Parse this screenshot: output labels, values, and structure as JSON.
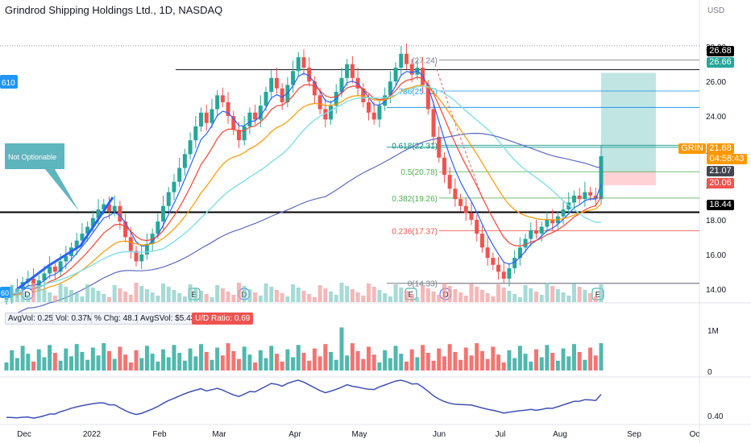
{
  "header": {
    "title": "Grindrod Shipping Holdings Ltd., 1D, NASDAQ",
    "currency": "USD"
  },
  "colors": {
    "up": "#26a69a",
    "down": "#ef5350",
    "ema_fast": "#f44336",
    "ema_slow": "#ff9800",
    "ma_cyan": "#80deea",
    "ma_purple": "#5c6bc0",
    "price_blue": "#2962ff",
    "teal_box": "#b2dfdb",
    "red_box": "#ffcdd2",
    "callout": "#5fb5bd"
  },
  "callout": {
    "text": "Not Optionable"
  },
  "left_badge": {
    "text": "610"
  },
  "left_bottom_badge": {
    "text": "60"
  },
  "price_labels": {
    "upper_level": "26.68",
    "upper_level2": "26.66",
    "ticker": "GRIN",
    "last_price": "21.68",
    "countdown": "04:58:43",
    "level_2107": "21.07",
    "level_2006": "20.06",
    "level_1844": "18.44"
  },
  "stats": {
    "avgvol": "AvgVol: 0.25M",
    "vol": "Vol: 0.37M",
    "chg": "% Chg: 48.13%",
    "avgdollar": "AvgSVol: $5.43M",
    "ud_ratio": "U/D Ratio: 0.69"
  },
  "chart_data": [
    {
      "type": "candlestick",
      "title": "Grindrod Shipping Holdings Ltd., 1D, NASDAQ",
      "y_axis_ticks": [
        "28.00",
        "26.00",
        "24.00",
        "22.00",
        "20.00",
        "18.00",
        "16.00",
        "14.00"
      ],
      "ylim": [
        13.2,
        29.5
      ],
      "x_axis_ticks": [
        "Dec",
        "2022",
        "Feb",
        "Mar",
        "Apr",
        "May",
        "Jun",
        "Jul",
        "Aug",
        "Sep",
        "Oc"
      ],
      "fib_levels": [
        {
          "label": "(27.24)",
          "value": 27.24
        },
        {
          "label": ".786(25.45)",
          "value": 25.45
        },
        {
          "label": "0.618(22.31)",
          "value": 22.31
        },
        {
          "label": "0.5(20.78)",
          "value": 20.78
        },
        {
          "label": "0.382(19.26)",
          "value": 19.26
        },
        {
          "label": "0.236(17.37)",
          "value": 17.37
        },
        {
          "label": "0(14.33)",
          "value": 14.33
        }
      ],
      "horizontal_levels": [
        28.06,
        26.68,
        24.5,
        22.2,
        18.44,
        14.33
      ],
      "earnings_markers": [
        "E",
        "E",
        "E",
        "E"
      ],
      "dividend_markers": [
        "D",
        "D",
        "D",
        "D"
      ],
      "series": [
        {
          "name": "Price",
          "note": "daily candles approx.",
          "close": [
            13.6,
            13.8,
            14.0,
            14.4,
            14.6,
            14.2,
            14.5,
            14.9,
            15.3,
            15.0,
            15.6,
            15.9,
            16.4,
            16.8,
            17.2,
            17.6,
            18.1,
            18.6,
            18.9,
            18.5,
            18.8,
            17.9,
            17.0,
            16.2,
            15.6,
            16.0,
            16.6,
            17.2,
            17.9,
            18.8,
            19.6,
            20.2,
            21.0,
            21.8,
            22.6,
            23.4,
            24.2,
            23.6,
            24.4,
            25.2,
            24.8,
            24.0,
            23.2,
            22.6,
            23.4,
            24.2,
            23.8,
            24.6,
            25.4,
            26.2,
            25.6,
            24.8,
            25.8,
            26.6,
            27.4,
            26.8,
            26.0,
            25.2,
            24.4,
            23.8,
            24.6,
            25.4,
            26.2,
            27.0,
            26.2,
            25.6,
            24.8,
            24.2,
            23.8,
            24.6,
            25.2,
            26.0,
            26.8,
            27.6,
            27.0,
            26.4,
            26.8,
            25.8,
            24.4,
            22.8,
            21.6,
            20.6,
            19.8,
            19.2,
            18.8,
            18.4,
            18.0,
            17.2,
            16.4,
            15.8,
            15.4,
            15.0,
            14.6,
            15.2,
            15.8,
            16.4,
            16.9,
            17.4,
            17.2,
            17.6,
            18.0,
            17.8,
            18.2,
            18.6,
            19.0,
            19.4,
            19.2,
            19.6,
            19.4,
            19.2,
            21.68
          ]
        },
        {
          "name": "Volume",
          "ylim": [
            0,
            1.2
          ],
          "unit": "M",
          "ticks": [
            "1M",
            "0"
          ]
        },
        {
          "name": "RS line",
          "ticks": [
            "0.40"
          ]
        }
      ]
    }
  ]
}
